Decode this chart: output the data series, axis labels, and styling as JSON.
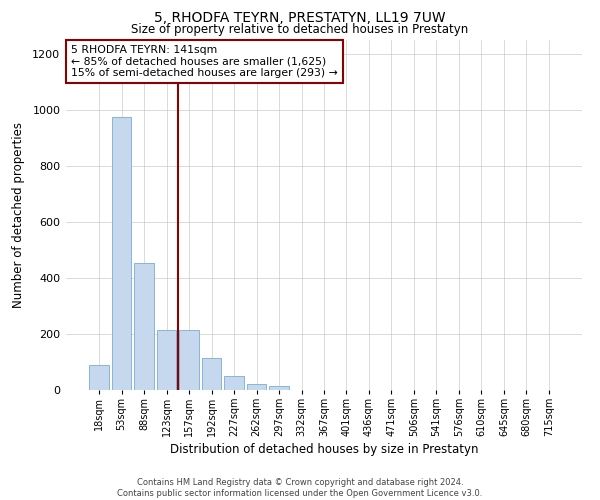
{
  "title": "5, RHODFA TEYRN, PRESTATYN, LL19 7UW",
  "subtitle": "Size of property relative to detached houses in Prestatyn",
  "xlabel": "Distribution of detached houses by size in Prestatyn",
  "ylabel": "Number of detached properties",
  "bar_labels": [
    "18sqm",
    "53sqm",
    "88sqm",
    "123sqm",
    "157sqm",
    "192sqm",
    "227sqm",
    "262sqm",
    "297sqm",
    "332sqm",
    "367sqm",
    "401sqm",
    "436sqm",
    "471sqm",
    "506sqm",
    "541sqm",
    "576sqm",
    "610sqm",
    "645sqm",
    "680sqm",
    "715sqm"
  ],
  "bar_values": [
    88,
    975,
    452,
    215,
    215,
    113,
    50,
    22,
    15,
    0,
    0,
    0,
    0,
    0,
    0,
    0,
    0,
    0,
    0,
    0,
    0
  ],
  "bar_color": "#c5d8ed",
  "bar_edge_color": "#7aadd4",
  "property_line_color": "#8b0000",
  "property_line_x": 3.5,
  "ylim": [
    0,
    1250
  ],
  "yticks": [
    0,
    200,
    400,
    600,
    800,
    1000,
    1200
  ],
  "annotation_title": "5 RHODFA TEYRN: 141sqm",
  "annotation_line1": "← 85% of detached houses are smaller (1,625)",
  "annotation_line2": "15% of semi-detached houses are larger (293) →",
  "annotation_box_color": "#8b0000",
  "footer_line1": "Contains HM Land Registry data © Crown copyright and database right 2024.",
  "footer_line2": "Contains public sector information licensed under the Open Government Licence v3.0.",
  "background_color": "#ffffff",
  "grid_color": "#cccccc"
}
